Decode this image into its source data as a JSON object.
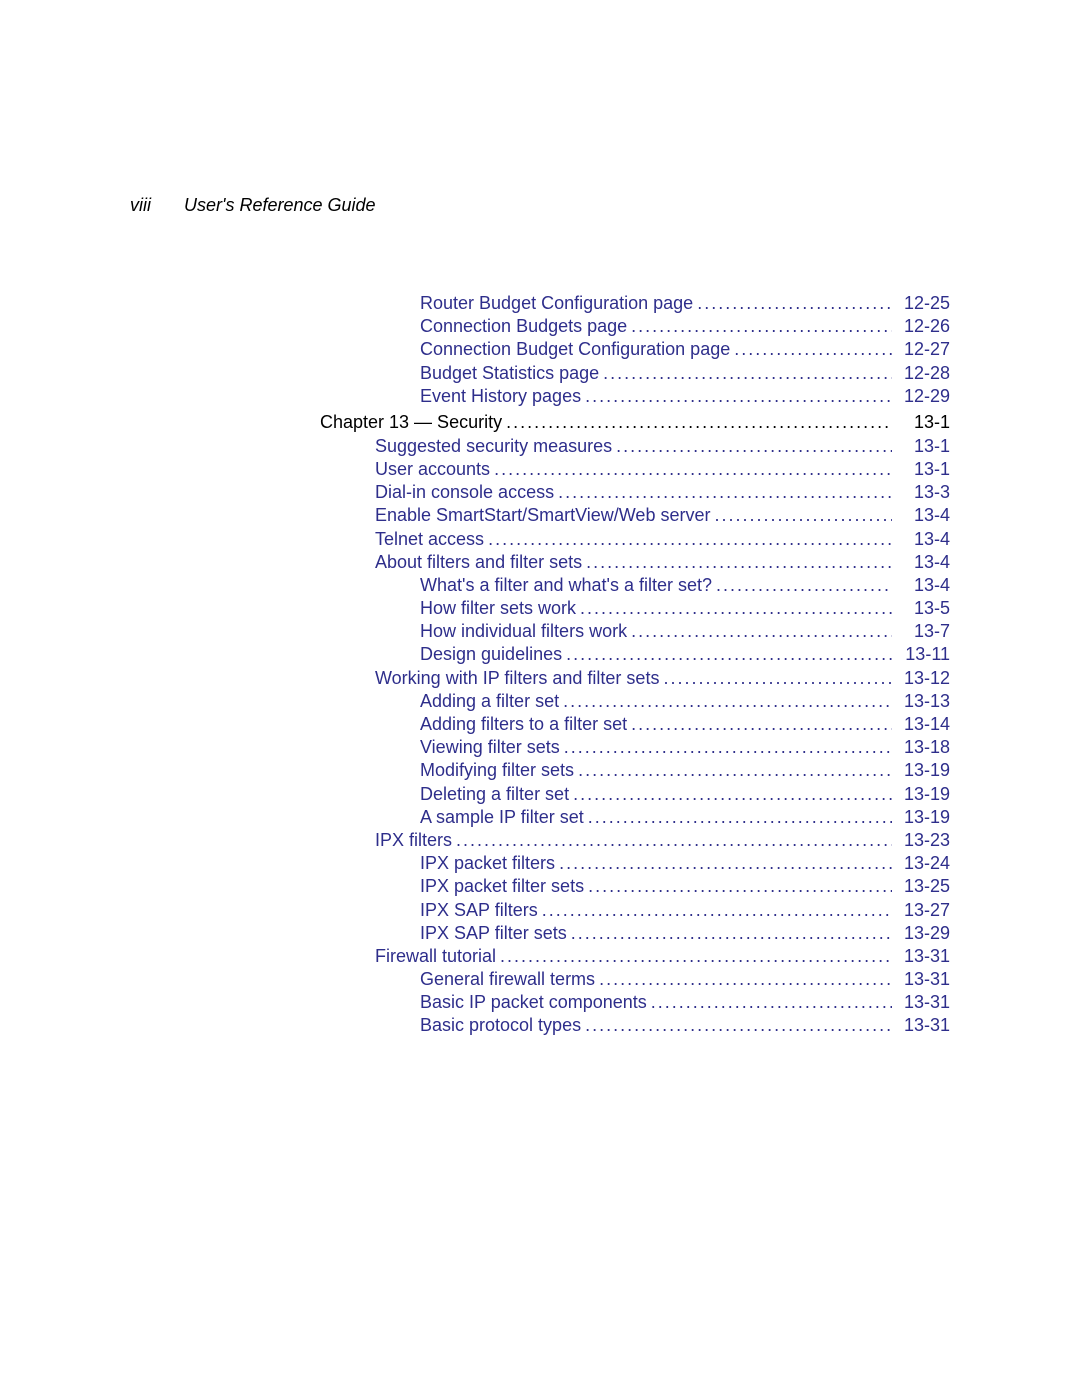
{
  "colors": {
    "link": "#2e2e8b",
    "text": "#000000",
    "background": "#ffffff"
  },
  "typography": {
    "body_fontsize_pt": 14,
    "header_italic": true
  },
  "header": {
    "page_number": "viii",
    "title": "User's Reference Guide"
  },
  "toc": [
    {
      "indent": 2,
      "label": "Router Budget Configuration page",
      "page": "12-25"
    },
    {
      "indent": 2,
      "label": "Connection Budgets page",
      "page": "12-26"
    },
    {
      "indent": 2,
      "label": "Connection Budget Configuration page",
      "page": "12-27"
    },
    {
      "indent": 2,
      "label": "Budget Statistics page",
      "page": "12-28"
    },
    {
      "indent": 2,
      "label": "Event History pages",
      "page": "12-29"
    },
    {
      "chapter": true,
      "indent": 0,
      "label": "Chapter 13 — Security",
      "page": "13-1"
    },
    {
      "indent": 1,
      "label": "Suggested security measures",
      "page": "13-1"
    },
    {
      "indent": 1,
      "label": "User accounts",
      "page": "13-1"
    },
    {
      "indent": 1,
      "label": "Dial-in console access",
      "page": "13-3"
    },
    {
      "indent": 1,
      "label": "Enable SmartStart/SmartView/Web server",
      "page": "13-4"
    },
    {
      "indent": 1,
      "label": "Telnet access",
      "page": "13-4"
    },
    {
      "indent": 1,
      "label": "About filters and filter sets",
      "page": "13-4"
    },
    {
      "indent": 2,
      "label": "What's a filter and what's a filter set?",
      "page": "13-4"
    },
    {
      "indent": 2,
      "label": "How filter sets work",
      "page": "13-5"
    },
    {
      "indent": 2,
      "label": "How individual filters work",
      "page": "13-7"
    },
    {
      "indent": 2,
      "label": "Design guidelines",
      "page": "13-11"
    },
    {
      "indent": 1,
      "label": "Working with IP filters and filter sets",
      "page": "13-12"
    },
    {
      "indent": 2,
      "label": "Adding a filter set",
      "page": "13-13"
    },
    {
      "indent": 2,
      "label": "Adding filters to a filter set",
      "page": "13-14"
    },
    {
      "indent": 2,
      "label": "Viewing filter sets",
      "page": "13-18"
    },
    {
      "indent": 2,
      "label": "Modifying filter sets",
      "page": "13-19"
    },
    {
      "indent": 2,
      "label": "Deleting a filter set",
      "page": "13-19"
    },
    {
      "indent": 2,
      "label": "A sample IP filter set",
      "page": "13-19"
    },
    {
      "indent": 1,
      "label": "IPX filters",
      "page": "13-23"
    },
    {
      "indent": 2,
      "label": "IPX packet filters",
      "page": "13-24"
    },
    {
      "indent": 2,
      "label": "IPX packet filter sets",
      "page": "13-25"
    },
    {
      "indent": 2,
      "label": "IPX SAP filters",
      "page": "13-27"
    },
    {
      "indent": 2,
      "label": "IPX SAP filter sets",
      "page": "13-29"
    },
    {
      "indent": 1,
      "label": "Firewall tutorial",
      "page": "13-31"
    },
    {
      "indent": 2,
      "label": "General firewall terms",
      "page": "13-31"
    },
    {
      "indent": 2,
      "label": "Basic IP packet components",
      "page": "13-31"
    },
    {
      "indent": 2,
      "label": "Basic protocol types",
      "page": "13-31"
    }
  ]
}
